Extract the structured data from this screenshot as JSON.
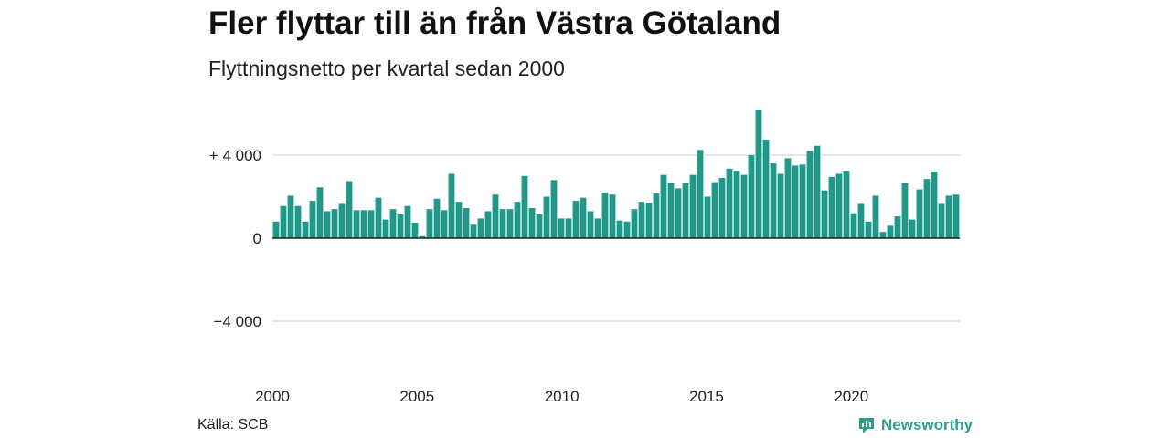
{
  "header": {
    "title": "Fler flyttar till än från Västra Götaland",
    "subtitle": "Flyttningsnetto per kvartal sedan 2000"
  },
  "footer": {
    "source": "Källa: SCB",
    "brand": "Newsworthy"
  },
  "colors": {
    "bar": "#1f9a8a",
    "grid": "#dddddd",
    "baseline": "#222222",
    "brand": "#2a9d8f"
  },
  "chart_data": {
    "type": "bar",
    "title": "Fler flyttar till än från Västra Götaland",
    "subtitle": "Flyttningsnetto per kvartal sedan 2000",
    "xlabel": "",
    "ylabel": "",
    "ylim": [
      -6200,
      6200
    ],
    "yticks": [
      {
        "value": 4000,
        "label": "+ 4 000"
      },
      {
        "value": 0,
        "label": "0"
      },
      {
        "value": -4000,
        "label": "−4 000"
      }
    ],
    "xticks": [
      {
        "value": 2000,
        "label": "2000"
      },
      {
        "value": 2005,
        "label": "2005"
      },
      {
        "value": 2010,
        "label": "2010"
      },
      {
        "value": 2015,
        "label": "2015"
      },
      {
        "value": 2020,
        "label": "2020"
      }
    ],
    "x_start": 2000,
    "x_end": 2023.75,
    "grid": true,
    "period": "quarter",
    "values": [
      800,
      1550,
      2050,
      1550,
      800,
      1800,
      2450,
      1300,
      1400,
      1650,
      2750,
      1350,
      1350,
      1350,
      1950,
      900,
      1400,
      1150,
      1550,
      750,
      100,
      1400,
      1900,
      1350,
      3100,
      1750,
      1450,
      650,
      950,
      1300,
      2100,
      1400,
      1400,
      1750,
      3000,
      1450,
      1150,
      2000,
      2800,
      950,
      950,
      1800,
      1950,
      1300,
      950,
      2200,
      2100,
      850,
      800,
      1400,
      1750,
      1700,
      2150,
      3050,
      2650,
      2400,
      2650,
      3050,
      4250,
      2000,
      2700,
      2900,
      3350,
      3250,
      3050,
      4000,
      6200,
      4750,
      3600,
      3100,
      3850,
      3500,
      3550,
      4200,
      4450,
      2300,
      2950,
      3100,
      3250,
      1200,
      1650,
      800,
      2050,
      300,
      600,
      1050,
      2650,
      900,
      2350,
      2850,
      3200,
      1650,
      2050,
      2100
    ]
  }
}
